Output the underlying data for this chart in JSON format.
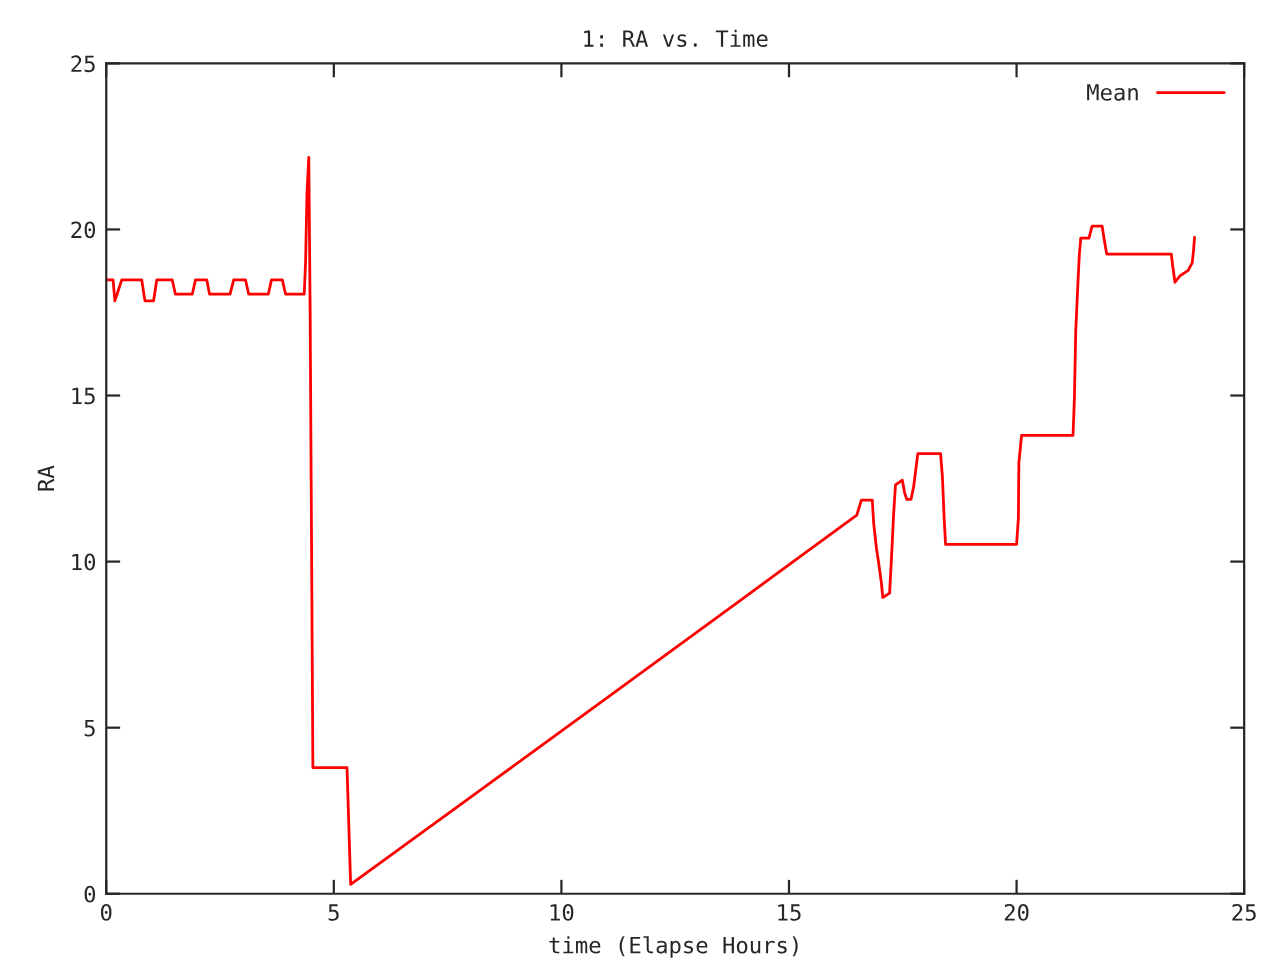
{
  "chart_data": {
    "type": "line",
    "title": "1: RA vs. Time",
    "xlabel": "time (Elapse Hours)",
    "ylabel": "RA",
    "xlim": [
      0,
      25
    ],
    "ylim": [
      0,
      25
    ],
    "xticks": [
      0,
      5,
      10,
      15,
      20,
      25
    ],
    "yticks": [
      0,
      5,
      10,
      15,
      20,
      25
    ],
    "grid": false,
    "legend": "top right",
    "marker": "none",
    "line_style": "solid",
    "series": [
      {
        "name": "Mean",
        "color": "#ff0000",
        "x": [
          0,
          0.15,
          0.19,
          0.34,
          0.78,
          0.85,
          1.04,
          1.11,
          1.45,
          1.52,
          1.89,
          1.96,
          2.21,
          2.27,
          2.72,
          2.8,
          3.06,
          3.13,
          3.56,
          3.63,
          3.87,
          3.94,
          4.35,
          4.38,
          4.41,
          4.45,
          4.48,
          4.54,
          5.29,
          5.31,
          5.35,
          5.37,
          8,
          11,
          14,
          15.25,
          16.49,
          16.59,
          16.83,
          16.86,
          16.92,
          16.97,
          17.03,
          17.06,
          17.21,
          17.25,
          17.3,
          17.34,
          17.49,
          17.54,
          17.59,
          17.68,
          17.74,
          17.79,
          17.83,
          18.33,
          18.37,
          18.41,
          18.44,
          20,
          20.04,
          20.05,
          20.11,
          21.24,
          21.27,
          21.3,
          21.35,
          21.38,
          21.41,
          21.59,
          21.66,
          21.88,
          21.92,
          21.98,
          23.4,
          23.43,
          23.48,
          23.59,
          23.77,
          23.86,
          23.89,
          23.91
        ],
        "values": [
          18.48,
          18.48,
          17.85,
          18.48,
          18.48,
          17.85,
          17.85,
          18.48,
          18.48,
          18.05,
          18.05,
          18.48,
          18.48,
          18.05,
          18.05,
          18.48,
          18.48,
          18.05,
          18.05,
          18.48,
          18.48,
          18.05,
          18.05,
          19.05,
          21.07,
          22.17,
          17.49,
          3.8,
          3.8,
          2.93,
          1.13,
          0.28,
          2.9,
          5.9,
          8.9,
          10.16,
          11.4,
          11.85,
          11.85,
          11.16,
          10.42,
          9.96,
          9.36,
          8.92,
          9.05,
          10.06,
          11.46,
          12.31,
          12.45,
          12.07,
          11.87,
          11.87,
          12.27,
          12.81,
          13.25,
          13.25,
          12.57,
          11.27,
          10.52,
          10.52,
          11.31,
          12.97,
          13.8,
          13.8,
          14.88,
          16.93,
          18.45,
          19.26,
          19.74,
          19.74,
          20.1,
          20.1,
          19.74,
          19.26,
          19.26,
          18.9,
          18.41,
          18.6,
          18.77,
          19.0,
          19.4,
          19.76
        ]
      }
    ]
  }
}
